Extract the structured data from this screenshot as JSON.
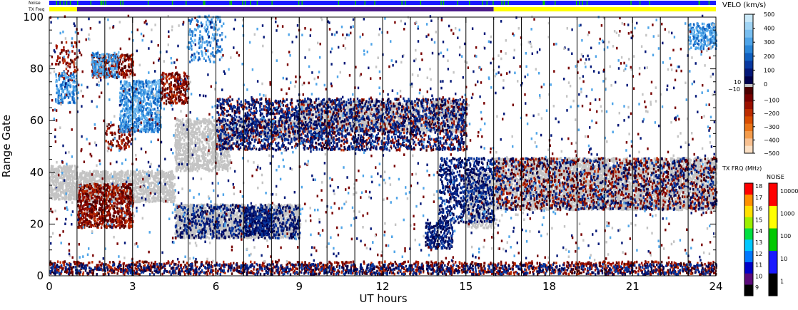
{
  "chart_data": {
    "type": "heatmap",
    "title": "",
    "xlabel": "UT hours",
    "ylabel": "Range Gate",
    "xlim": [
      0,
      24
    ],
    "ylim": [
      0,
      100
    ],
    "x_ticks": [
      0,
      3,
      6,
      9,
      12,
      15,
      18,
      21,
      24
    ],
    "y_ticks": [
      0,
      20,
      40,
      60,
      80,
      100
    ],
    "scan_lines_hours": [
      1,
      2,
      3,
      4,
      5,
      6,
      7,
      8,
      9,
      10,
      11,
      12,
      13,
      14,
      15,
      16,
      17,
      18,
      19,
      20,
      21,
      22,
      23
    ],
    "top_strips": {
      "noise_label": "Noise",
      "txfreq_label": "TX Freq",
      "txfreq_segments": [
        {
          "from": 0,
          "to": 1,
          "color": "#ffff00"
        },
        {
          "from": 1,
          "to": 16,
          "color": "#4b1a8a"
        },
        {
          "from": 16,
          "to": 24,
          "color": "#ffff00"
        }
      ]
    },
    "velocity_colorbar": {
      "title": "VELO (km/s)",
      "ticks": [
        "500",
        "400",
        "300",
        "200",
        "100",
        "0",
        "−100",
        "−200",
        "−300",
        "−400",
        "−500"
      ],
      "ground_scatter_labels": [
        "10",
        "−10"
      ],
      "colors": [
        "#c8e8f8",
        "#a0d4f4",
        "#78bef0",
        "#4ea4e8",
        "#2a86d8",
        "#1060c0",
        "#0838a0",
        "#041878",
        "#00004c",
        "#4c0000",
        "#780000",
        "#9c1000",
        "#bc2c00",
        "#d84c00",
        "#ea7418",
        "#f49c4c",
        "#f8c090",
        "#fce0c4"
      ]
    },
    "txfreq_colorbar": {
      "title": "TX FRQ (MHz)",
      "ticks": [
        "18",
        "17",
        "16",
        "15",
        "14",
        "13",
        "12",
        "11",
        "10",
        "9"
      ],
      "colors": [
        "#000000",
        "#5a0a7a",
        "#0000c8",
        "#0078ff",
        "#00c8ff",
        "#00e040",
        "#9cf000",
        "#ffe000",
        "#ff9000",
        "#ff0000"
      ]
    },
    "noise_colorbar": {
      "title": "NOISE",
      "ticks": [
        "10000",
        "1000",
        "100",
        "10",
        "1"
      ],
      "colors": [
        "#000000",
        "#1a1aff",
        "#00c800",
        "#ffff00",
        "#ff0000"
      ]
    },
    "regions": [
      {
        "kind": "ground",
        "x": [
          0.0,
          1.0
        ],
        "y": [
          29,
          42
        ],
        "density": 0.85
      },
      {
        "kind": "ground",
        "x": [
          1.0,
          4.5
        ],
        "y": [
          28,
          40
        ],
        "density": 0.7
      },
      {
        "kind": "ground",
        "x": [
          4.5,
          6.5
        ],
        "y": [
          40,
          60
        ],
        "density": 0.6
      },
      {
        "kind": "ground",
        "x": [
          6.5,
          9.0
        ],
        "y": [
          52,
          60
        ],
        "density": 0.6
      },
      {
        "kind": "ground",
        "x": [
          9.0,
          15.0
        ],
        "y": [
          55,
          67
        ],
        "density": 0.6
      },
      {
        "kind": "ground",
        "x": [
          15.0,
          16.0
        ],
        "y": [
          18,
          40
        ],
        "density": 0.6
      },
      {
        "kind": "ground",
        "x": [
          16.0,
          24.0
        ],
        "y": [
          25,
          45
        ],
        "density": 0.9
      },
      {
        "kind": "ground",
        "x": [
          4.5,
          9.0
        ],
        "y": [
          14,
          27
        ],
        "density": 0.9
      },
      {
        "kind": "neg",
        "x": [
          1.0,
          3.0
        ],
        "y": [
          18,
          35
        ],
        "density": 0.6
      },
      {
        "kind": "neg",
        "x": [
          0.2,
          1.0
        ],
        "y": [
          75,
          90
        ],
        "density": 0.15
      },
      {
        "kind": "neg",
        "x": [
          1.5,
          3.0
        ],
        "y": [
          76,
          85
        ],
        "density": 0.5
      },
      {
        "kind": "neg",
        "x": [
          4.0,
          5.0
        ],
        "y": [
          66,
          78
        ],
        "density": 0.5
      },
      {
        "kind": "neg",
        "x": [
          2.0,
          3.0
        ],
        "y": [
          48,
          58
        ],
        "density": 0.25
      },
      {
        "kind": "neg",
        "x": [
          0.0,
          24.0
        ],
        "y": [
          0,
          5
        ],
        "density": 0.3
      },
      {
        "kind": "neg",
        "x": [
          16.0,
          24.0
        ],
        "y": [
          25,
          45
        ],
        "density": 0.15
      },
      {
        "kind": "neg",
        "x": [
          6.0,
          15.0
        ],
        "y": [
          48,
          68
        ],
        "density": 0.12
      },
      {
        "kind": "pos_dark",
        "x": [
          4.5,
          9.0
        ],
        "y": [
          14,
          27
        ],
        "density": 0.25
      },
      {
        "kind": "pos_dark",
        "x": [
          7.0,
          8.0
        ],
        "y": [
          15,
          26
        ],
        "density": 0.6
      },
      {
        "kind": "pos_dark",
        "x": [
          14.0,
          16.0
        ],
        "y": [
          20,
          45
        ],
        "density": 0.35
      },
      {
        "kind": "pos_dark",
        "x": [
          13.5,
          14.5
        ],
        "y": [
          10,
          20
        ],
        "density": 0.55
      },
      {
        "kind": "pos_dark",
        "x": [
          6.0,
          15.0
        ],
        "y": [
          48,
          68
        ],
        "density": 0.25
      },
      {
        "kind": "pos_dark",
        "x": [
          0.0,
          24.0
        ],
        "y": [
          0,
          4
        ],
        "density": 0.25
      },
      {
        "kind": "pos_dark",
        "x": [
          16.0,
          24.0
        ],
        "y": [
          25,
          45
        ],
        "density": 0.1
      },
      {
        "kind": "pos_light",
        "x": [
          0.2,
          1.0
        ],
        "y": [
          66,
          78
        ],
        "density": 0.45
      },
      {
        "kind": "pos_light",
        "x": [
          2.5,
          4.0
        ],
        "y": [
          55,
          75
        ],
        "density": 0.6
      },
      {
        "kind": "pos_light",
        "x": [
          1.5,
          2.5
        ],
        "y": [
          76,
          86
        ],
        "density": 0.4
      },
      {
        "kind": "pos_light",
        "x": [
          23.0,
          24.0
        ],
        "y": [
          87,
          97
        ],
        "density": 0.55
      },
      {
        "kind": "pos_light",
        "x": [
          5.0,
          6.2
        ],
        "y": [
          82,
          100
        ],
        "density": 0.2
      },
      {
        "kind": "scatter_misc",
        "x": [
          0.0,
          24.0
        ],
        "y": [
          5,
          100
        ],
        "density": 0.02
      }
    ]
  }
}
